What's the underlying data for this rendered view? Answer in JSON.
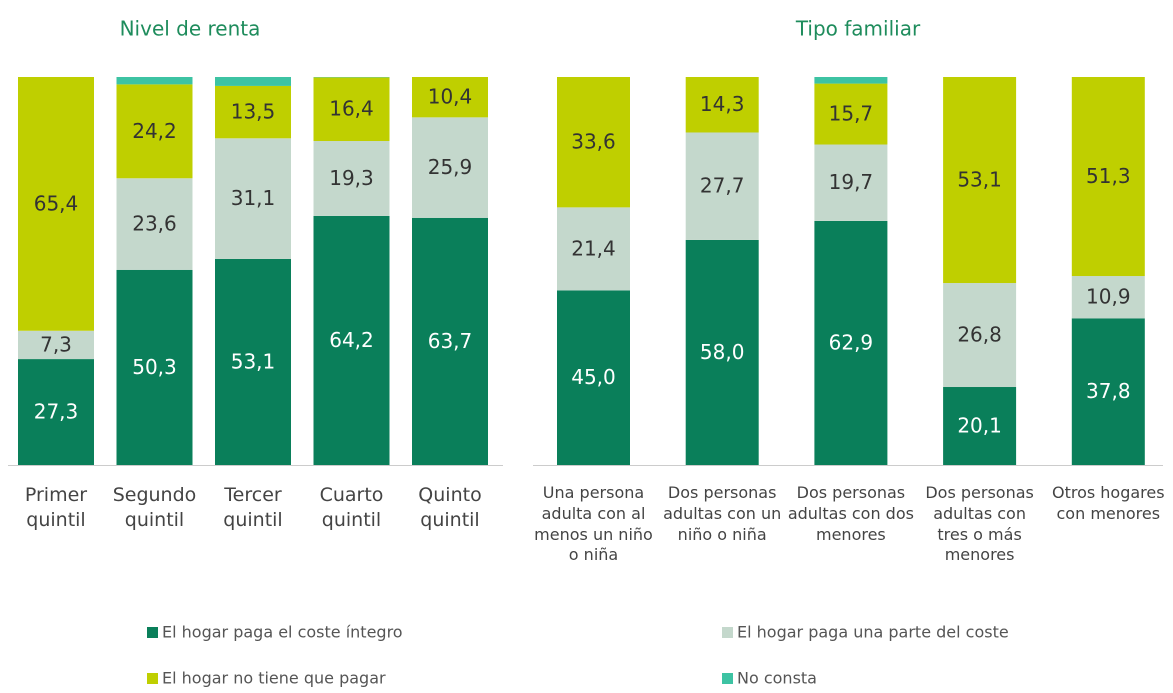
{
  "chart_data": [
    {
      "type": "stacked_bar",
      "title": "Nivel de renta",
      "categories": [
        "Primer quintil",
        "Segundo quintil",
        "Tercer quintil",
        "Cuarto quintil",
        "Quinto quintil"
      ],
      "ylim": [
        0,
        100
      ],
      "series": [
        {
          "name": "El hogar paga el coste íntegro",
          "color": "#0a7f5a",
          "values": [
            27.3,
            50.3,
            53.1,
            64.2,
            63.7
          ],
          "value_labels": [
            "27,3",
            "50,3",
            "53,1",
            "64,2",
            "63,7"
          ]
        },
        {
          "name": "El hogar paga una parte del coste",
          "color": "#c4d8cc",
          "values": [
            7.3,
            23.6,
            31.1,
            19.3,
            25.9
          ],
          "value_labels": [
            "7,3",
            "23,6",
            "31,1",
            "19,3",
            "25,9"
          ]
        },
        {
          "name": "El hogar no tiene que pagar",
          "color": "#bfcf00",
          "values": [
            65.4,
            24.2,
            13.5,
            16.4,
            10.4
          ],
          "value_labels": [
            "65,4",
            "24,2",
            "13,5",
            "16,4",
            "10,4"
          ]
        },
        {
          "name": "No consta",
          "color": "#3dc3a3",
          "values": [
            0,
            1.9,
            2.3,
            0.1,
            0
          ]
        }
      ]
    },
    {
      "type": "stacked_bar",
      "title": "Tipo familiar",
      "categories": [
        "Una persona adulta con al menos un niño o niña",
        "Dos personas adultas con un niño o niña",
        "Dos personas adultas con dos menores",
        "Dos personas adultas con tres o más menores",
        "Otros hogares con menores"
      ],
      "ylim": [
        0,
        100
      ],
      "series": [
        {
          "color": "#0a7f5a",
          "values": [
            45.0,
            58.0,
            62.9,
            20.1,
            37.8
          ],
          "value_labels": [
            "45,0",
            "58,0",
            "62,9",
            "20,1",
            "37,8"
          ]
        },
        {
          "color": "#c4d8cc",
          "values": [
            21.4,
            27.7,
            19.7,
            26.8,
            10.9
          ],
          "value_labels": [
            "21,4",
            "27,7",
            "19,7",
            "26,8",
            "10,9"
          ]
        },
        {
          "color": "#bfcf00",
          "values": [
            33.6,
            14.3,
            15.7,
            53.1,
            51.3
          ],
          "value_labels": [
            "33,6",
            "14,3",
            "15,7",
            "53,1",
            "51,3"
          ]
        },
        {
          "color": "#3dc3a3",
          "values": [
            0,
            0,
            1.7,
            0,
            0
          ]
        }
      ]
    }
  ]
}
